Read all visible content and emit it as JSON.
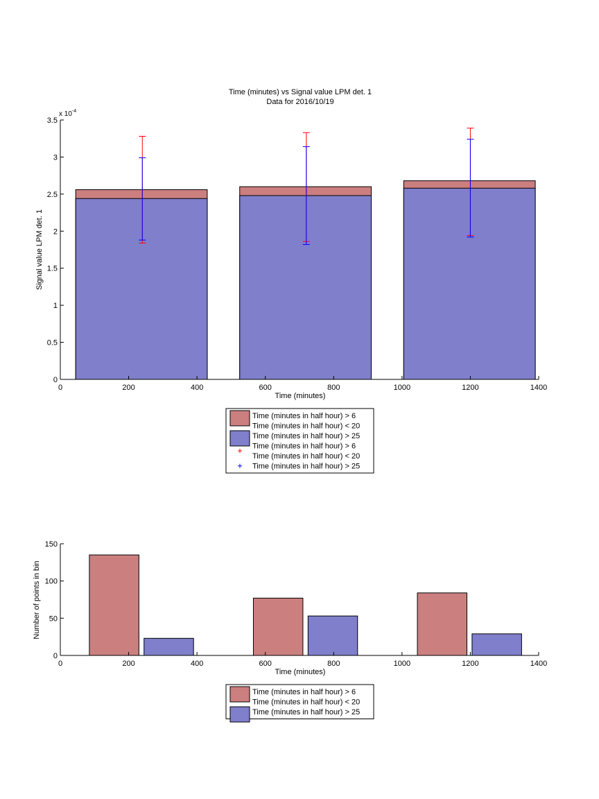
{
  "chart_data": [
    {
      "type": "bar",
      "title": "Time (minutes) vs Signal value LPM det. 1",
      "subtitle": "Data for 2016/10/19",
      "xlabel": "Time (minutes)",
      "ylabel": "Signal value LPM det. 1",
      "y_exponent_label": "x 10",
      "y_exponent_power": "-4",
      "xlim": [
        0,
        1400
      ],
      "ylim": [
        0,
        3.5
      ],
      "y_scale_factor": 0.0001,
      "x_ticks": [
        "0",
        "200",
        "400",
        "600",
        "800",
        "1000",
        "1200",
        "1400"
      ],
      "y_ticks": [
        "0",
        "0.5",
        "1",
        "1.5",
        "2",
        "2.5",
        "3",
        "3.5"
      ],
      "bar_edges": [
        [
          45,
          430
        ],
        [
          525,
          910
        ],
        [
          1005,
          1390
        ]
      ],
      "errorbar_x": [
        240,
        720,
        1200
      ],
      "series": [
        {
          "name": "Time (minutes in half hour) > 6\nTime (minutes in half hour) < 20",
          "color": "#cc7f7f",
          "errcolor": "#ff0000",
          "values": [
            2.56,
            2.6,
            2.68
          ],
          "err_low": [
            1.84,
            1.86,
            1.94
          ],
          "err_high": [
            3.28,
            3.33,
            3.39
          ]
        },
        {
          "name": "Time (minutes in half hour) > 25",
          "color": "#7f7fcc",
          "errcolor": "#0000ff",
          "values": [
            2.44,
            2.48,
            2.58
          ],
          "err_low": [
            1.88,
            1.82,
            1.92
          ],
          "err_high": [
            2.99,
            3.14,
            3.24
          ]
        }
      ],
      "legend": {
        "placement": "below",
        "entries": [
          {
            "kind": "patch",
            "color": "#cc7f7f",
            "lines": [
              "Time (minutes in half hour) > 6",
              "Time (minutes in half hour) < 20"
            ]
          },
          {
            "kind": "patch",
            "color": "#7f7fcc",
            "lines": [
              "Time (minutes in half hour) > 25"
            ]
          },
          {
            "kind": "marker",
            "color": "#ff0000",
            "lines": [
              "Time (minutes in half hour) > 6",
              "Time (minutes in half hour) < 20"
            ]
          },
          {
            "kind": "marker",
            "color": "#0000ff",
            "lines": [
              "Time (minutes in half hour) > 25"
            ]
          }
        ]
      }
    },
    {
      "type": "bar",
      "title": "",
      "xlabel": "Time (minutes)",
      "ylabel": "Number of points in bin",
      "xlim": [
        0,
        1400
      ],
      "ylim": [
        0,
        150
      ],
      "x_ticks": [
        "0",
        "200",
        "400",
        "600",
        "800",
        "1000",
        "1200",
        "1400"
      ],
      "y_ticks": [
        "0",
        "50",
        "100",
        "150"
      ],
      "series": [
        {
          "name": "Time (minutes in half hour) > 6\nTime (minutes in half hour) < 20",
          "color": "#cc7f7f",
          "bar_edges": [
            [
              85,
              230
            ],
            [
              565,
              710
            ],
            [
              1045,
              1190
            ]
          ],
          "values": [
            135,
            77,
            84
          ]
        },
        {
          "name": "Time (minutes in half hour) > 25",
          "color": "#7f7fcc",
          "bar_edges": [
            [
              245,
              390
            ],
            [
              725,
              870
            ],
            [
              1205,
              1350
            ]
          ],
          "values": [
            23,
            53,
            29
          ]
        }
      ],
      "legend": {
        "placement": "below",
        "entries": [
          {
            "kind": "patch",
            "color": "#cc7f7f",
            "lines": [
              "Time (minutes in half hour) > 6",
              "Time (minutes in half hour) < 20"
            ]
          },
          {
            "kind": "patch",
            "color": "#7f7fcc",
            "lines": [
              "Time (minutes in half hour) > 25"
            ]
          }
        ]
      }
    }
  ]
}
